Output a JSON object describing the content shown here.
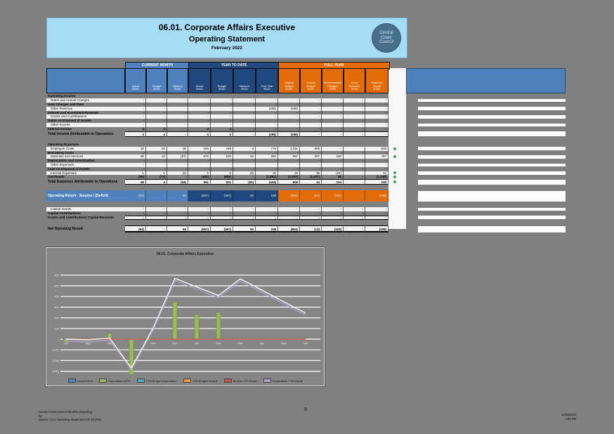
{
  "header": {
    "title_line1": "06.01.  Corporate Affairs Executive",
    "title_line2": "Operating Statement",
    "period": "February 2022",
    "logo_lines": [
      "Central",
      "Coast",
      "Council"
    ]
  },
  "colors": {
    "page_bg": "#808080",
    "title_band": "#a6ddf5",
    "current_month": "#4f81bd",
    "year_to_date": "#1f497d",
    "full_year": "#e36c09",
    "light_row": "#f2f2f2",
    "indicator_dot": "#3fa05c"
  },
  "table": {
    "bands": [
      {
        "label": "CURRENT MONTH",
        "color": "#4f81bd"
      },
      {
        "label": "YEAR TO DATE",
        "color": "#1f497d"
      },
      {
        "label": "FULL YEAR",
        "color": "#e36c09"
      }
    ],
    "col_headers": [
      {
        "band": 0,
        "lines": [
          "Actual",
          "$'000"
        ]
      },
      {
        "band": 0,
        "lines": [
          "Budget",
          "$'000"
        ]
      },
      {
        "band": 0,
        "lines": [
          "Variance",
          "$'000"
        ]
      },
      {
        "band": 1,
        "lines": [
          "Actual",
          "$'000"
        ]
      },
      {
        "band": 1,
        "lines": [
          "Budget",
          "$'000"
        ]
      },
      {
        "band": 1,
        "lines": [
          "Variance",
          "$'000"
        ]
      },
      {
        "band": 1,
        "lines": [
          "Prior Year",
          "$'000"
        ]
      },
      {
        "band": 2,
        "lines": [
          "Original",
          "Budget",
          "$'000"
        ]
      },
      {
        "band": 2,
        "lines": [
          "Current",
          "Budget",
          "$'000"
        ]
      },
      {
        "band": 2,
        "lines": [
          "Recommended",
          "Changes",
          "$'000"
        ]
      },
      {
        "band": 2,
        "lines": [
          "Carry",
          "Forwards",
          "$'000"
        ]
      },
      {
        "band": 2,
        "lines": [
          "Projected",
          "Result",
          "$'000"
        ]
      }
    ],
    "comments_header": "",
    "rows": [
      {
        "type": "section",
        "label": "Operating Income"
      },
      {
        "type": "light",
        "label": "Rates and Annual Charges",
        "values": [
          "-",
          "-",
          "-",
          "-",
          "-",
          "-",
          "-",
          "-",
          "-",
          "-",
          "-",
          "-"
        ]
      },
      {
        "type": "dark",
        "label": "User Charges and Fees",
        "values": [
          "-",
          "-",
          "-",
          "-",
          "-",
          "-",
          "-",
          "-",
          "-",
          "-",
          "-",
          "-"
        ]
      },
      {
        "type": "light",
        "label": "Other Revenue",
        "values": [
          "-",
          "-",
          "-",
          "-",
          "-",
          "-",
          "(196)",
          "(196)",
          "-",
          "-",
          "-",
          "-"
        ]
      },
      {
        "type": "dark",
        "label": "Interest and Investment Revenue",
        "values": [
          "-",
          "-",
          "-",
          "-",
          "-",
          "-",
          "-",
          "-",
          "-",
          "-",
          "-",
          "-"
        ]
      },
      {
        "type": "light",
        "label": "Grants and Contributions",
        "values": [
          "-",
          "-",
          "-",
          "-",
          "-",
          "-",
          "-",
          "-",
          "-",
          "-",
          "-",
          "-"
        ]
      },
      {
        "type": "dark",
        "label": "Gains on Disposal of Assets",
        "values": [
          "-",
          "-",
          "-",
          "-",
          "-",
          "-",
          "-",
          "-",
          "-",
          "-",
          "-",
          "-"
        ]
      },
      {
        "type": "light",
        "label": "Other Income",
        "values": [
          "-",
          "-",
          "-",
          "-",
          "-",
          "-",
          "-",
          "-",
          "-",
          "-",
          "-",
          "-"
        ]
      },
      {
        "type": "dark",
        "label": "Internal Income",
        "values": [
          "4",
          "4",
          "-",
          "4",
          "4",
          "-",
          "-",
          "-",
          "-",
          "-",
          "-",
          "-"
        ]
      },
      {
        "type": "total",
        "label": "Total Income Attributable to Operations",
        "values": [
          "4",
          "4",
          "-",
          "4",
          "4",
          "-",
          "(196)",
          "(196)",
          "-",
          "-",
          "-",
          "-"
        ]
      },
      {
        "type": "spacer"
      },
      {
        "type": "section",
        "label": "Operating Expenses"
      },
      {
        "type": "light",
        "label": "Employee Costs",
        "dot": true,
        "values": [
          "33",
          "53",
          "20",
          "445",
          "449",
          "3",
          "774",
          "1,011",
          "609",
          "-",
          "-",
          "609"
        ]
      },
      {
        "type": "dark",
        "label": "Borrowing Costs",
        "values": [
          "-",
          "-",
          "-",
          "-",
          "-",
          "-",
          "-",
          "-",
          "-",
          "-",
          "-",
          "-"
        ]
      },
      {
        "type": "light",
        "label": "Materials and Services",
        "dot": true,
        "values": [
          "90",
          "23",
          "(67)",
          "576",
          "630",
          "54",
          "353",
          "657",
          "607",
          "160",
          "-",
          "767"
        ]
      },
      {
        "type": "dark",
        "label": "Depreciation and Amortisation",
        "values": [
          "-",
          "-",
          "-",
          "-",
          "-",
          "-",
          "-",
          "-",
          "-",
          "-",
          "-",
          "-"
        ]
      },
      {
        "type": "light",
        "label": "Other Expenses",
        "values": [
          "-",
          "-",
          "-",
          "-",
          "-",
          "-",
          "-",
          "-",
          "-",
          "-",
          "-",
          "-"
        ]
      },
      {
        "type": "dark",
        "label": "Loss on Disposal of Assets",
        "values": [
          "-",
          "-",
          "-",
          "-",
          "-",
          "-",
          "-",
          "-",
          "-",
          "-",
          "-",
          "-"
        ]
      },
      {
        "type": "light",
        "label": "Internal Expenses",
        "dot": true,
        "values": [
          "1",
          "1",
          "(0)",
          "6",
          "6",
          "(0)",
          "20",
          "33",
          "35",
          "(24)",
          "-",
          "11"
        ]
      },
      {
        "type": "dark",
        "label": "Overheads",
        "dot": true,
        "values": [
          "(56)",
          "(73)",
          "-",
          "(466)",
          "(584)",
          "-",
          "(1,581)",
          "(1,093)",
          "(1,237)",
          "88",
          "-",
          "(1,149)"
        ]
      },
      {
        "type": "total",
        "label": "Total Expenses Attributable to Operations",
        "dot": true,
        "values": [
          "68",
          "4",
          "(64)",
          "561",
          "501",
          "(60)",
          "(434)",
          "608",
          "14",
          "224",
          "-",
          "238"
        ]
      },
      {
        "type": "spacer"
      },
      {
        "type": "band",
        "label": "Operating Result - Surplus / (Deficit)",
        "values": [
          "(64)",
          "-",
          "64",
          "(557)",
          "(497)",
          "60",
          "238",
          "(804)",
          "(14)",
          "(224)",
          "-",
          "(238)"
        ]
      },
      {
        "type": "spacer"
      },
      {
        "type": "light",
        "label": "Capital Grants",
        "values": [
          "-",
          "-",
          "-",
          "-",
          "-",
          "-",
          "-",
          "-",
          "-",
          "-",
          "-",
          "-"
        ]
      },
      {
        "type": "dark",
        "label": "Capital Contributions",
        "values": [
          "-",
          "-",
          "-",
          "-",
          "-",
          "-",
          "-",
          "-",
          "-",
          "-",
          "-",
          "-"
        ]
      },
      {
        "type": "boldrow",
        "label": "Grants and Contributions Capital Received",
        "values": [
          "-",
          "-",
          "-",
          "-",
          "-",
          "-",
          "-",
          "-",
          "-",
          "-",
          "-",
          "-"
        ]
      },
      {
        "type": "spacer"
      },
      {
        "type": "net",
        "label": "Net Operating Result",
        "values": [
          "(64)",
          "-",
          "64",
          "(557)",
          "(497)",
          "60",
          "238",
          "(804)",
          "(14)",
          "(224)",
          "-",
          "(238)"
        ]
      }
    ]
  },
  "chart_data": {
    "type": "bar",
    "title": "06.01. Corporate Affairs Executive",
    "x": [
      "Jul",
      "Aug",
      "Sep",
      "Oct",
      "Nov",
      "Dec",
      "Jan",
      "Feb",
      "Mar",
      "Apr",
      "May",
      "Jun"
    ],
    "ylim": [
      -400,
      600
    ],
    "yticks": [
      600,
      500,
      400,
      300,
      200,
      100,
      0,
      -100,
      -200,
      -300,
      -400
    ],
    "grid": true,
    "legend_position": "bottom",
    "series": [
      {
        "name": "Income MTD",
        "type": "bar",
        "color": "#4f81bd",
        "values": [
          5,
          2,
          1,
          0,
          0,
          0,
          0,
          0,
          0,
          0,
          0,
          0
        ]
      },
      {
        "name": "Expenditure MTD",
        "type": "bar",
        "color": "#9bbb59",
        "values": [
          -25,
          -8,
          55,
          -330,
          8,
          350,
          230,
          250,
          0,
          0,
          0,
          0
        ]
      },
      {
        "name": "YTD Budget Expenditure",
        "type": "line",
        "color": "#4bacc6",
        "values": [
          0,
          0,
          0,
          0,
          0,
          0,
          0,
          0,
          0,
          0,
          0,
          0
        ]
      },
      {
        "name": "YTD Budget Income",
        "type": "line",
        "color": "#f79646",
        "values": [
          0,
          0,
          0,
          0,
          0,
          0,
          0,
          0,
          0,
          0,
          0,
          0
        ]
      },
      {
        "name": "Income YTD Actual",
        "type": "line",
        "color": "#c0504d",
        "values": [
          0,
          0,
          0,
          0,
          0,
          0,
          0,
          0,
          0,
          0,
          0,
          0
        ]
      },
      {
        "name": "Expenditure YTD Actual",
        "type": "line",
        "color": "#b3a2c7",
        "halo": true,
        "values": [
          -20,
          -25,
          -10,
          -290,
          85,
          550,
          470,
          390,
          545,
          440,
          330,
          225
        ]
      }
    ]
  },
  "footer": {
    "left_lines": [
      "Central Coast Council Monthly Reporting",
      "by:",
      "Source: CCC Operating Statement Feb-22 (FM)"
    ],
    "center_page": "8",
    "right_lines": [
      "14/03/2022",
      "4:58 PM"
    ]
  }
}
